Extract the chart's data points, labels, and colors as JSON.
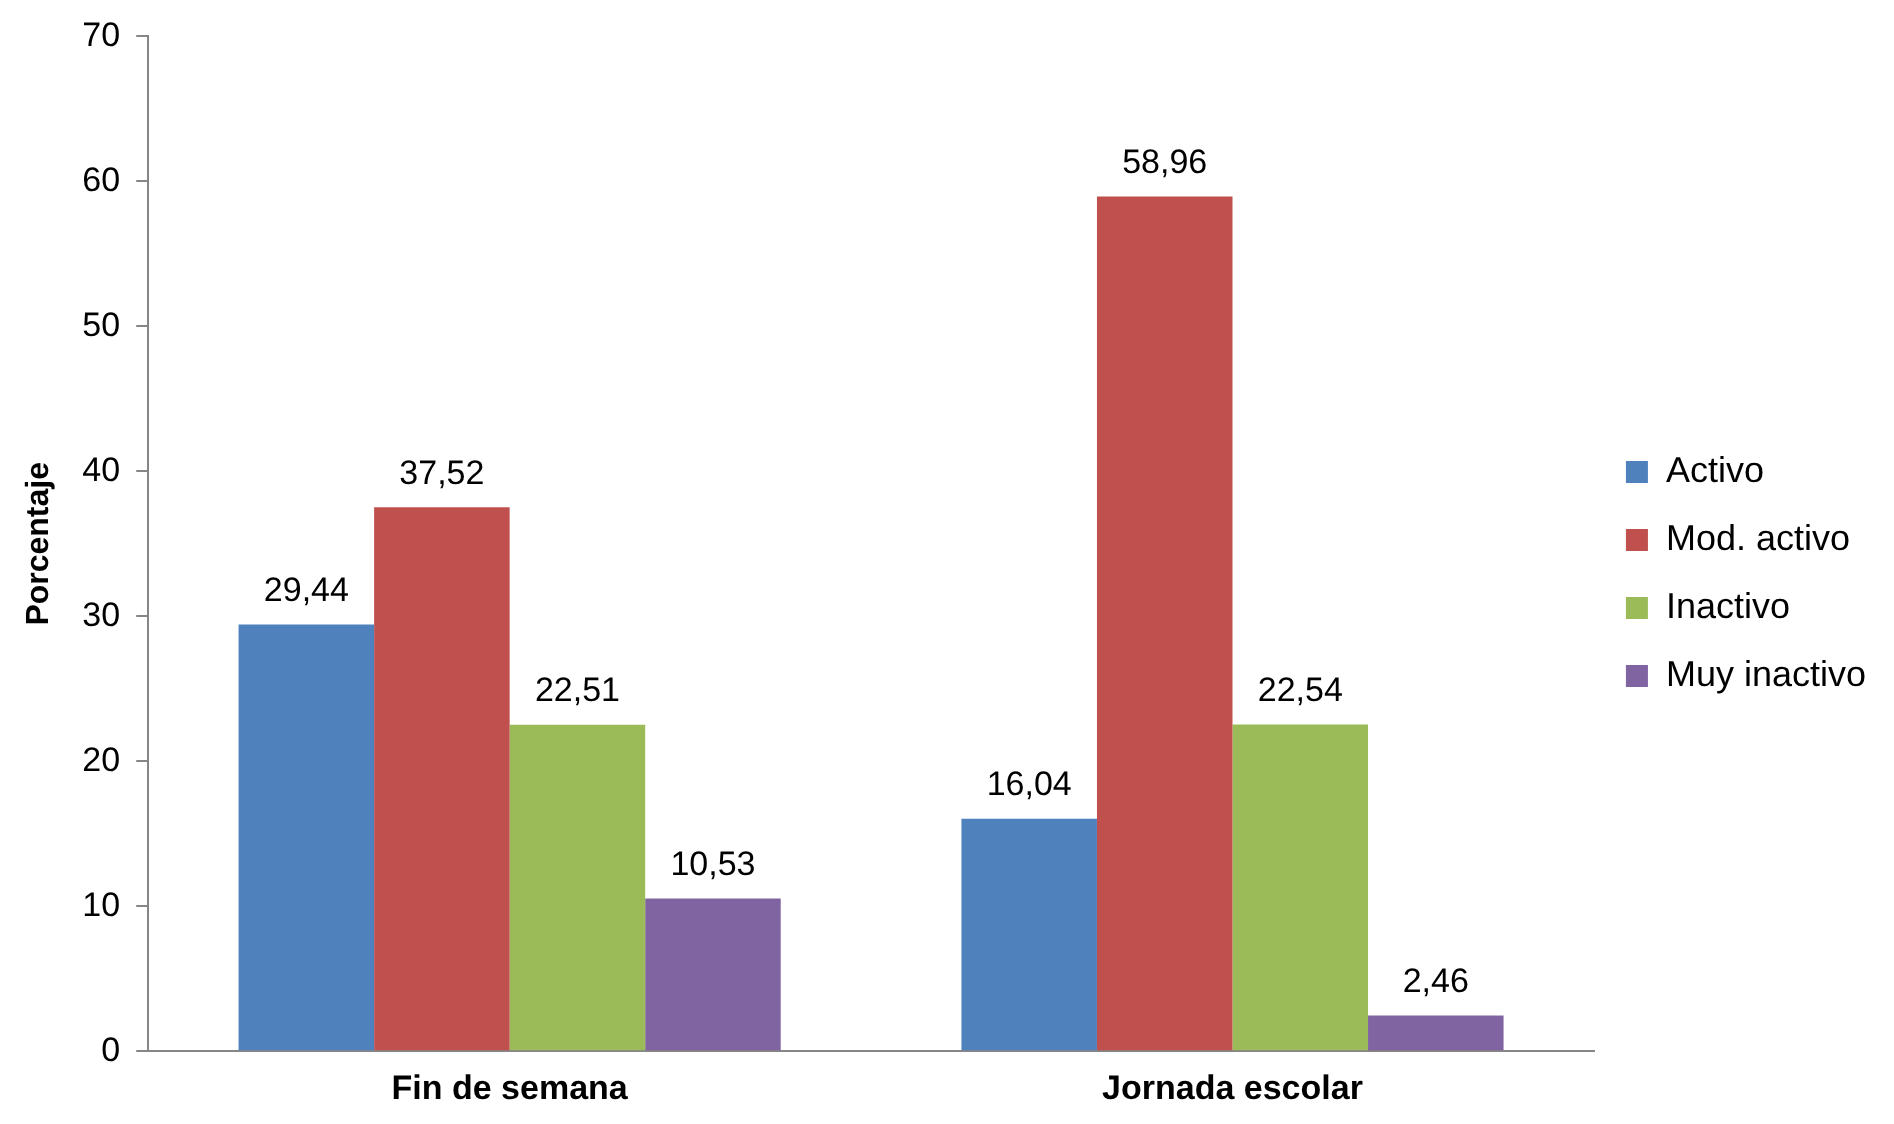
{
  "chart_data": {
    "type": "bar",
    "ylabel": "Porcentaje",
    "categories": [
      "Fin de semana",
      "Jornada escolar"
    ],
    "series": [
      {
        "name": "Activo",
        "color": "#4f81bd",
        "values": [
          29.44,
          16.04
        ],
        "value_labels": [
          "29,44",
          "16,04"
        ]
      },
      {
        "name": "Mod. activo",
        "color": "#c0504d",
        "values": [
          37.52,
          58.96
        ],
        "value_labels": [
          "37,52",
          "58,96"
        ]
      },
      {
        "name": "Inactivo",
        "color": "#9bbb59",
        "values": [
          22.51,
          22.54
        ],
        "value_labels": [
          "22,51",
          "22,54"
        ]
      },
      {
        "name": "Muy inactivo",
        "color": "#8064a2",
        "values": [
          10.53,
          2.46
        ],
        "value_labels": [
          "10,53",
          "2,46"
        ]
      }
    ],
    "ylim": [
      0,
      70
    ],
    "yticks": [
      0,
      10,
      20,
      30,
      40,
      50,
      60,
      70
    ],
    "grid": false,
    "legend": "right"
  }
}
